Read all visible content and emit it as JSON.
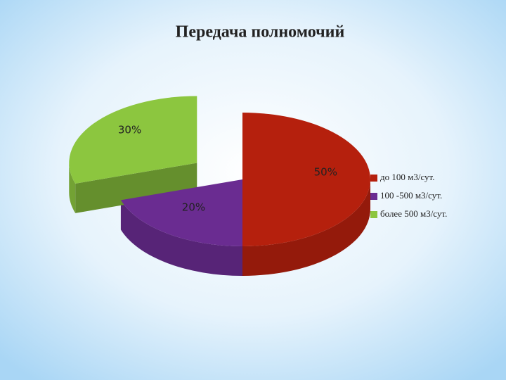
{
  "chart_data": {
    "type": "pie3d",
    "title": "Передача полномочий",
    "categories": [
      "до 100 м3/сут.",
      "100 -500 м3/сут.",
      "более 500 м3/сут."
    ],
    "values": [
      50,
      20,
      30
    ],
    "value_labels": [
      "50%",
      "20%",
      "30%"
    ],
    "colors": [
      "#b5200d",
      "#6a2c91",
      "#8cc63f"
    ],
    "exploded": [
      false,
      false,
      true
    ],
    "legend": "right"
  }
}
